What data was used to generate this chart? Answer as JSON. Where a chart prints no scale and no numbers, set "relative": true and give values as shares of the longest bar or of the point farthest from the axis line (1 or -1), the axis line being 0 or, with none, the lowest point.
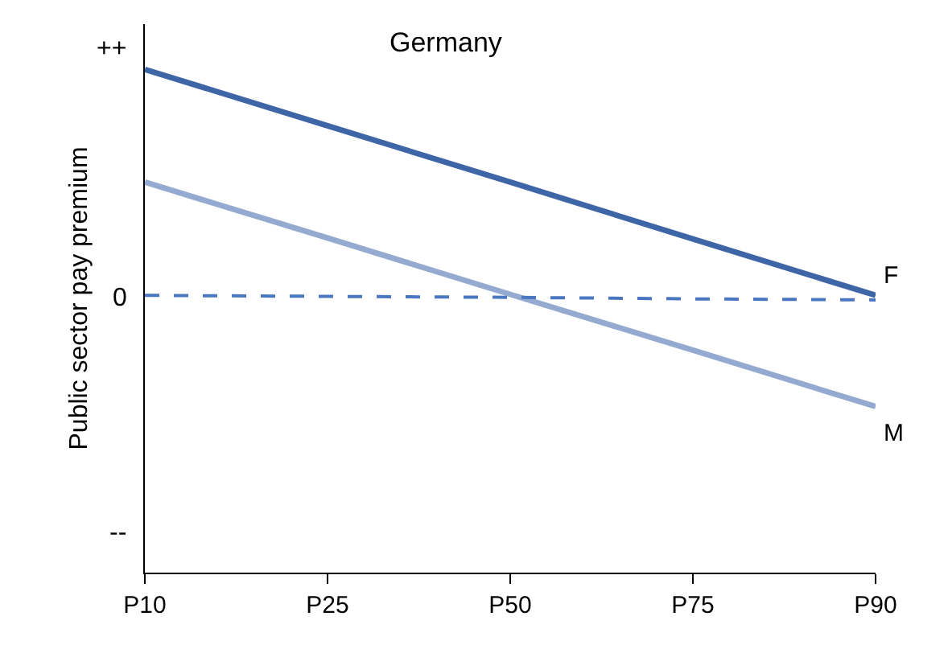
{
  "chart_data": {
    "type": "line",
    "title": "Germany",
    "ylabel": "Public sector pay premium",
    "relative": true,
    "categories": [
      "P10",
      "P25",
      "P50",
      "P75",
      "P90"
    ],
    "series": [
      {
        "name": "F",
        "color": "#3e66a6",
        "values": [
          1,
          0.888,
          0.776,
          0.663,
          0.551
        ]
      },
      {
        "name": "M",
        "color": "#94aad0",
        "values": [
          0.776,
          0.665,
          0.553,
          0.442,
          0.33
        ]
      },
      {
        "color": "#4a77c0",
        "line_style": "dashed",
        "values": [
          0.551,
          0.549,
          0.547,
          0.544,
          0.542
        ]
      }
    ],
    "annotations": [
      "++",
      "0",
      "--"
    ],
    "legend": false,
    "marker": "none"
  }
}
